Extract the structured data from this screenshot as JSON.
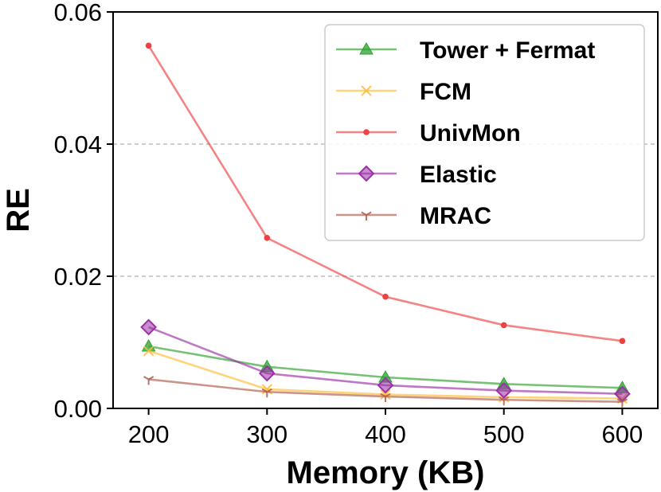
{
  "chart_data": {
    "type": "line",
    "title": "",
    "xlabel": "Memory (KB)",
    "ylabel": "RE",
    "x": [
      200,
      300,
      400,
      500,
      600
    ],
    "xlim": [
      170,
      630
    ],
    "ylim": [
      0,
      0.06
    ],
    "xticks": [
      "200",
      "300",
      "400",
      "500",
      "600"
    ],
    "yticks": [
      "0.00",
      "0.02",
      "0.04",
      "0.06"
    ],
    "grid": "horizontal dashed",
    "legend_position": "top-right",
    "series": [
      {
        "name": "Tower + Fermat",
        "color": "#2ca02c",
        "marker": "triangle",
        "values": [
          0.0094,
          0.0063,
          0.0047,
          0.0037,
          0.0031
        ]
      },
      {
        "name": "FCM",
        "color": "#ffbb33",
        "marker": "x",
        "values": [
          0.0087,
          0.0029,
          0.0021,
          0.0017,
          0.0015
        ]
      },
      {
        "name": "UnivMon",
        "color": "#f04040",
        "marker": "dot",
        "values": [
          0.0549,
          0.0258,
          0.0169,
          0.0126,
          0.0102
        ]
      },
      {
        "name": "Elastic",
        "color": "#9b30a8",
        "marker": "diamond",
        "values": [
          0.0123,
          0.0053,
          0.0035,
          0.0027,
          0.0022
        ]
      },
      {
        "name": "MRAC",
        "color": "#b05a4a",
        "marker": "tri-down",
        "values": [
          0.0044,
          0.0025,
          0.0018,
          0.0013,
          0.001
        ]
      }
    ]
  }
}
